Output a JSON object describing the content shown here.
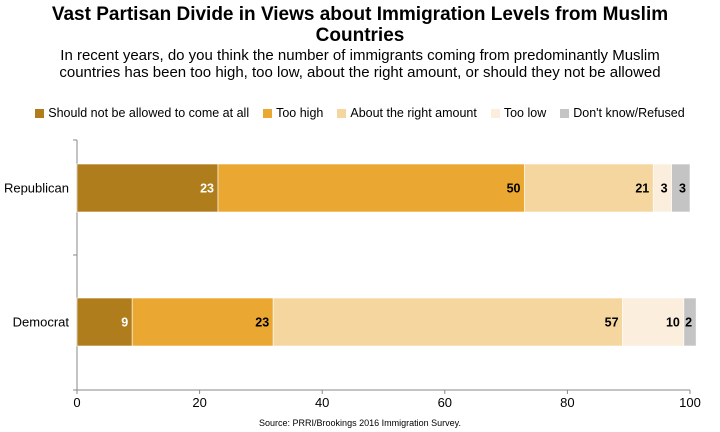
{
  "chart_data": {
    "type": "bar",
    "orientation": "horizontal",
    "stacked": true,
    "title": "Vast Partisan Divide in Views about Immigration Levels from Muslim Countries",
    "subtitle": "In recent years, do you think the number of immigrants coming from predominantly Muslim countries has been too high, too low, about the right amount, or should they not be allowed",
    "categories": [
      "Republican",
      "Democrat"
    ],
    "series": [
      {
        "name": "Should not be allowed to come at all",
        "color": "#b07d1c",
        "label_color": "#ffffff",
        "values": [
          23,
          9
        ]
      },
      {
        "name": "Too high",
        "color": "#eaa731",
        "label_color": "#000000",
        "values": [
          50,
          23
        ]
      },
      {
        "name": "About the right amount",
        "color": "#f5d69f",
        "label_color": "#000000",
        "values": [
          21,
          57
        ]
      },
      {
        "name": "Too low",
        "color": "#fbeedd",
        "label_color": "#000000",
        "values": [
          3,
          10
        ]
      },
      {
        "name": "Don't know/Refused",
        "color": "#c4c4c4",
        "label_color": "#000000",
        "values": [
          3,
          2
        ]
      }
    ],
    "xlim": [
      0,
      100
    ],
    "xticks": [
      0,
      20,
      40,
      60,
      80,
      100
    ],
    "grid": false,
    "legend_position": "top",
    "source": "Source: PRRI/Brookings 2016 Immigration Survey."
  }
}
